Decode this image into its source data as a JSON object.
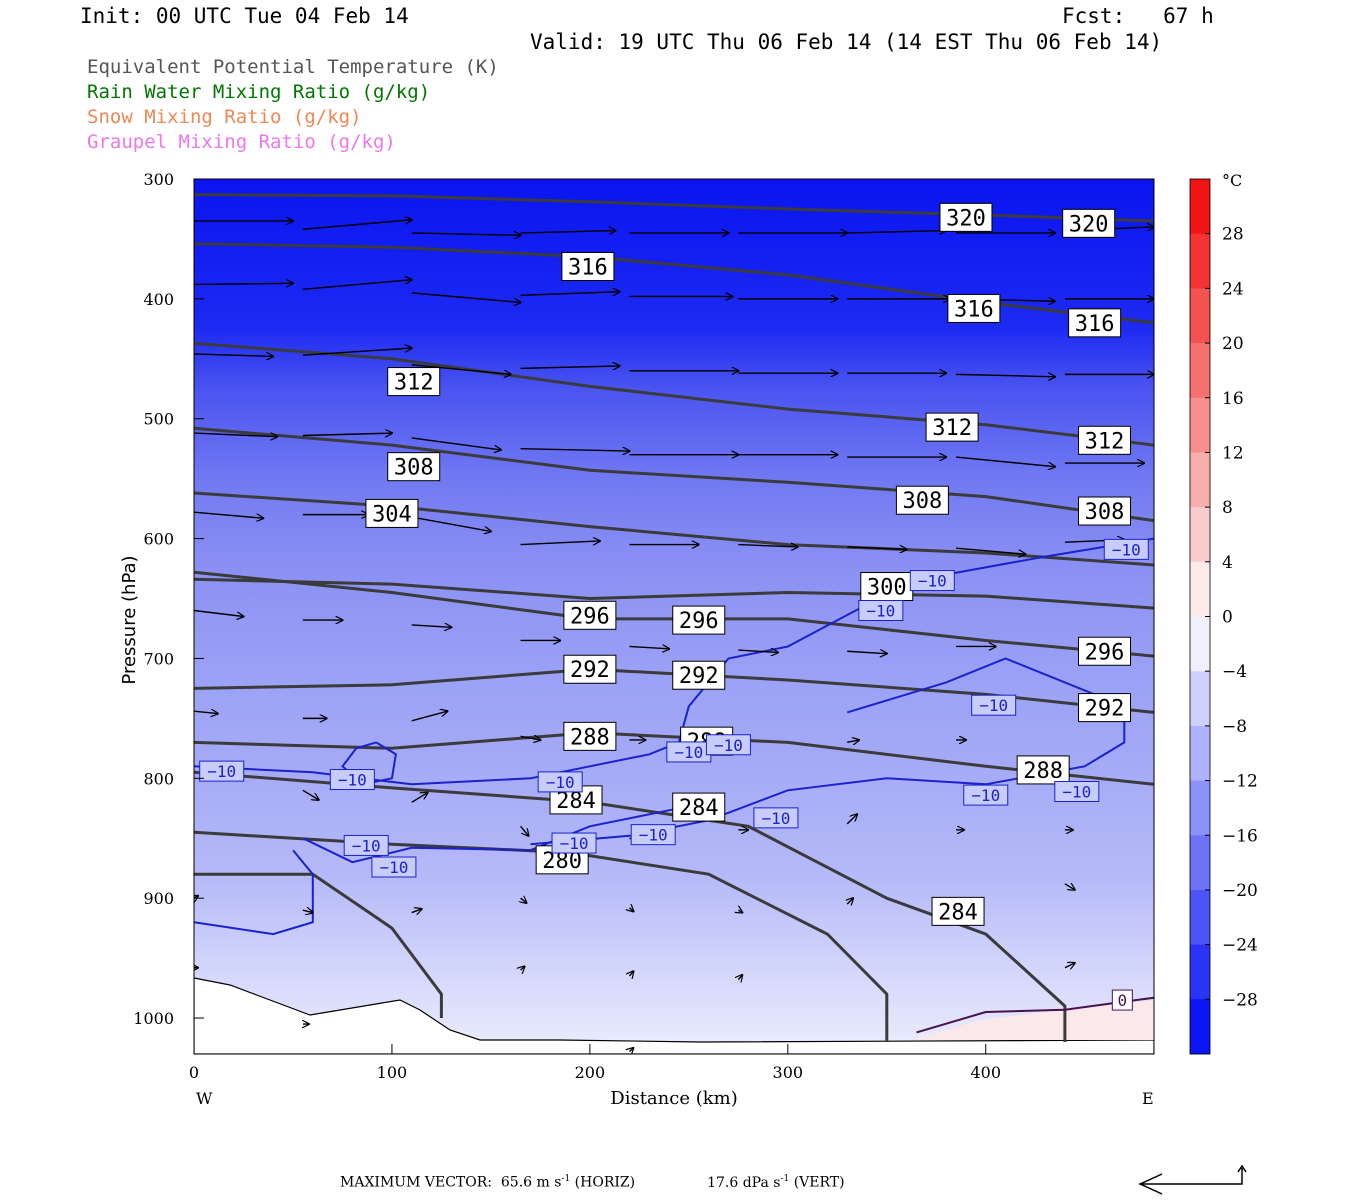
{
  "header": {
    "init": "Init: 00 UTC Tue 04 Feb 14",
    "fcst": "Fcst:   67 h",
    "valid": "Valid: 19 UTC Thu 06 Feb 14 (14 EST Thu 06 Feb 14)"
  },
  "legend": [
    {
      "label": "Equivalent Potential Temperature (K)",
      "color": "#555555"
    },
    {
      "label": "Rain Water Mixing Ratio (g/kg)",
      "color": "#007700"
    },
    {
      "label": "Snow Mixing Ratio (g/kg)",
      "color": "#ee8855"
    },
    {
      "label": "Graupel Mixing Ratio (g/kg)",
      "color": "#ee77ee"
    }
  ],
  "footer": {
    "max_vector_label": "MAXIMUM VECTOR:",
    "horiz": "65.6 m s",
    "horiz_exp": "-1",
    "horiz_tag": "(HORIZ)",
    "vert": "17.6 dPa s",
    "vert_exp": "-1",
    "vert_tag": "(VERT)"
  },
  "chart_data": {
    "type": "heatmap",
    "xlabel": "Distance (km)",
    "ylabel": "Pressure (hPa)",
    "xlim": [
      0,
      485
    ],
    "ylim": [
      1030,
      300
    ],
    "x_ticks": [
      0,
      100,
      200,
      300,
      400
    ],
    "y_ticks": [
      300,
      400,
      500,
      600,
      700,
      800,
      900,
      1000
    ],
    "x_end_labels": {
      "left": "W",
      "right": "E"
    },
    "colorbar": {
      "unit": "°C",
      "ticks": [
        28,
        24,
        20,
        16,
        12,
        8,
        4,
        0,
        -4,
        -8,
        -12,
        -16,
        -20,
        -24,
        -28
      ]
    },
    "theta_e_contours": [
      {
        "value": 320,
        "labels": [
          [
            390,
            332
          ],
          [
            452,
            337
          ]
        ]
      },
      {
        "value": 316,
        "labels": [
          [
            199,
            373
          ],
          [
            394,
            408
          ],
          [
            455,
            420
          ]
        ]
      },
      {
        "value": 312,
        "labels": [
          [
            111,
            469
          ],
          [
            383,
            507
          ],
          [
            460,
            518
          ]
        ]
      },
      {
        "value": 308,
        "labels": [
          [
            111,
            540
          ],
          [
            368,
            568
          ],
          [
            460,
            577
          ]
        ]
      },
      {
        "value": 304,
        "labels": [
          [
            100,
            579
          ]
        ]
      },
      {
        "value": 300,
        "labels": [
          [
            350,
            640
          ]
        ]
      },
      {
        "value": 296,
        "labels": [
          [
            200,
            664
          ],
          [
            255,
            668
          ],
          [
            460,
            694
          ]
        ]
      },
      {
        "value": 292,
        "labels": [
          [
            200,
            709
          ],
          [
            255,
            714
          ],
          [
            460,
            741
          ]
        ]
      },
      {
        "value": 288,
        "labels": [
          [
            200,
            765
          ],
          [
            259,
            769
          ],
          [
            429,
            793
          ]
        ]
      },
      {
        "value": 284,
        "labels": [
          [
            193,
            818
          ],
          [
            255,
            824
          ],
          [
            386,
            911
          ]
        ]
      },
      {
        "value": 280,
        "labels": [
          [
            186,
            868
          ]
        ]
      }
    ],
    "temperature_contours": [
      {
        "value": -10,
        "labels": [
          [
            14,
            794
          ],
          [
            80,
            801
          ],
          [
            87,
            856
          ],
          [
            101,
            874
          ],
          [
            185,
            803
          ],
          [
            192,
            854
          ],
          [
            232,
            847
          ],
          [
            250,
            778
          ],
          [
            270,
            772
          ],
          [
            294,
            833
          ],
          [
            347,
            660
          ],
          [
            373,
            635
          ],
          [
            400,
            814
          ],
          [
            404,
            739
          ],
          [
            446,
            811
          ],
          [
            471,
            609
          ]
        ]
      },
      {
        "value": 0,
        "labels": [
          [
            469,
            985
          ]
        ]
      }
    ],
    "max_vector": {
      "horizontal": 65.6,
      "horizontal_unit": "m s-1",
      "vertical": 17.6,
      "vertical_unit": "dPa s-1"
    }
  }
}
